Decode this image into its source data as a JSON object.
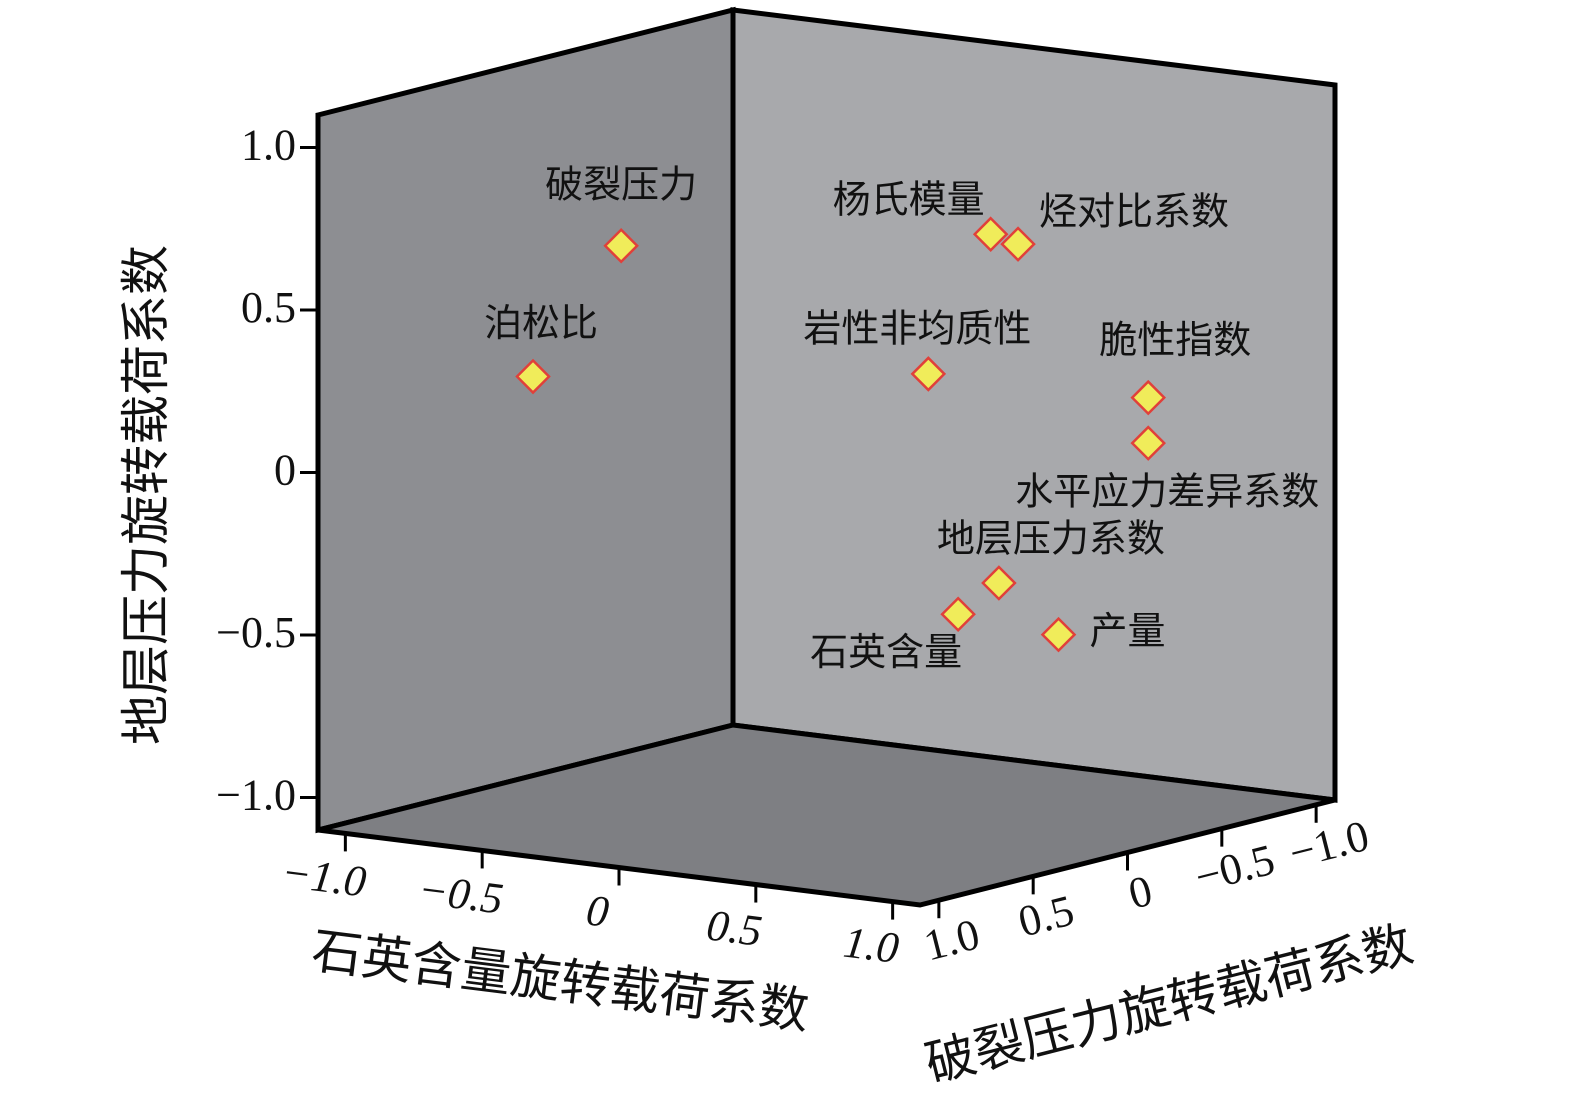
{
  "chart_data": {
    "type": "scatter3d",
    "x_label": "石英含量旋转载荷系数",
    "y_label": "地层压力旋转载荷系数",
    "z_label": "破裂压力旋转载荷系数",
    "xlim": [
      -1.1,
      1.1
    ],
    "ylim": [
      -1.1,
      1.1
    ],
    "zlim": [
      -1.1,
      1.1
    ],
    "xticks": [
      {
        "value": -1,
        "label": "−1.0"
      },
      {
        "value": -0.5,
        "label": "−0.5"
      },
      0,
      {
        "value": 0.5,
        "label": "0.5"
      },
      {
        "value": 1,
        "label": "1.0"
      }
    ],
    "yticks": [
      {
        "value": -1,
        "label": "−1.0"
      },
      {
        "value": -0.5,
        "label": "−0.5"
      },
      0,
      {
        "value": 0.5,
        "label": "0.5"
      },
      {
        "value": 1,
        "label": "1.0"
      }
    ],
    "zticks": [
      {
        "value": -1,
        "label": "−1.0"
      },
      {
        "value": -0.5,
        "label": "−0.5"
      },
      0,
      {
        "value": 0.5,
        "label": "0.5"
      },
      {
        "value": 1,
        "label": "1.0"
      }
    ],
    "labels": [
      "破裂压力",
      "泊松比",
      "杨氏模量",
      "烃对比系数",
      "岩性非均质性",
      "脆性指数",
      "水平应力差异系数",
      "地层压力系数",
      "石英含量",
      "产量"
    ],
    "x": [
      -0.13,
      -0.59,
      0.6,
      0.7,
      0.51,
      0.9,
      0.9,
      0.63,
      0.55,
      0.71
    ],
    "y": [
      0.77,
      0.29,
      0.75,
      0.73,
      0.34,
      0.22,
      0.08,
      -0.32,
      -0.41,
      -0.5
    ],
    "z": [
      0.9,
      0.7,
      0.0,
      0.0,
      0.2,
      -0.4,
      -0.4,
      0.0,
      0.1,
      -0.2
    ],
    "color": "#f0ec5a",
    "edge_color": "#e0403a"
  }
}
